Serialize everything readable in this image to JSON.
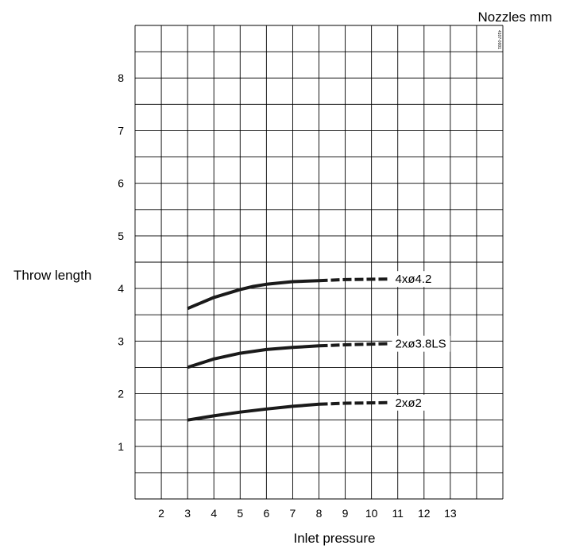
{
  "chart_data": {
    "type": "line",
    "title": "",
    "xlabel": "Inlet pressure",
    "ylabel": "Throw length",
    "legend_title": "Nozzles mm",
    "document_code": "4107-0001",
    "x_ticks": [
      2,
      3,
      4,
      5,
      6,
      7,
      8,
      9,
      10,
      11,
      12,
      13
    ],
    "y_ticks": [
      1,
      2,
      3,
      4,
      5,
      6,
      7,
      8
    ],
    "xlim": [
      1,
      15
    ],
    "ylim": [
      0,
      9
    ],
    "grid": true,
    "series": [
      {
        "name": "4xø4.2",
        "solid": {
          "x": [
            3,
            4,
            5,
            5.5,
            6,
            7,
            8
          ],
          "y": [
            3.62,
            3.83,
            3.98,
            4.04,
            4.08,
            4.13,
            4.15
          ]
        },
        "dashed": {
          "x": [
            8,
            9,
            10.6
          ],
          "y": [
            4.15,
            4.17,
            4.18
          ]
        }
      },
      {
        "name": "2xø3.8LS",
        "solid": {
          "x": [
            3,
            4,
            5,
            6,
            7,
            8
          ],
          "y": [
            2.5,
            2.66,
            2.77,
            2.84,
            2.88,
            2.91
          ]
        },
        "dashed": {
          "x": [
            8,
            9,
            10.6
          ],
          "y": [
            2.91,
            2.93,
            2.95
          ]
        }
      },
      {
        "name": "2xø2",
        "solid": {
          "x": [
            3,
            4,
            5,
            6,
            7,
            8
          ],
          "y": [
            1.5,
            1.58,
            1.65,
            1.71,
            1.76,
            1.8
          ]
        },
        "dashed": {
          "x": [
            8,
            9,
            10.6
          ],
          "y": [
            1.8,
            1.82,
            1.83
          ]
        }
      }
    ]
  }
}
